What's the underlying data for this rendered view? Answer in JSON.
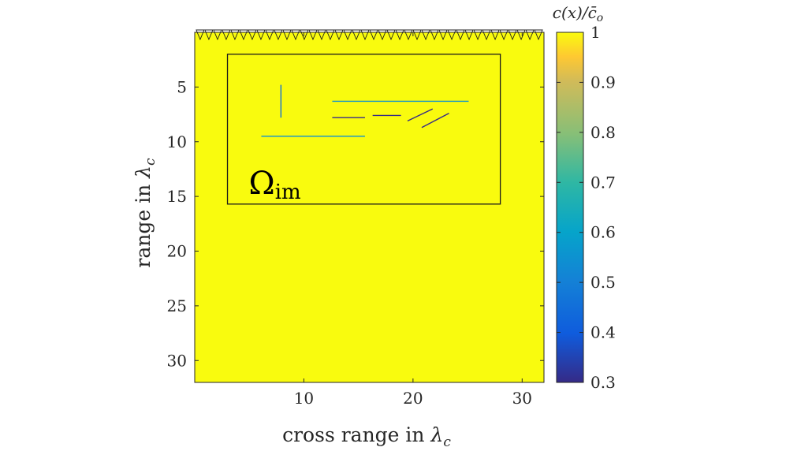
{
  "chart_data": {
    "type": "heatmap",
    "title": "",
    "xlabel": "cross range in",
    "xlabel_symbol": "λ",
    "xlabel_subscript": "c",
    "ylabel": "range in",
    "ylabel_symbol": "λ",
    "ylabel_subscript": "c",
    "xlim": [
      0,
      32
    ],
    "ylim": [
      0,
      32
    ],
    "y_reversed": true,
    "x_ticks": [
      10,
      20,
      30
    ],
    "y_ticks": [
      5,
      10,
      15,
      20,
      25,
      30
    ],
    "background_value": 1,
    "colormap": "parula",
    "colorbar": {
      "label": "c(x)/c̄o",
      "label_parts": [
        "c(x)/",
        "c̄",
        "o"
      ],
      "range": [
        0.3,
        1
      ],
      "ticks": [
        0.3,
        0.4,
        0.5,
        0.6,
        0.7,
        0.8,
        0.9,
        1
      ],
      "tick_labels": [
        "0.3",
        "0.4",
        "0.5",
        "0.6",
        "0.7",
        "0.8",
        "0.9",
        "1"
      ]
    },
    "array_sensors": {
      "x_start": 0.5,
      "x_end": 31.5,
      "count": 40,
      "y": 0
    },
    "imaging_window": {
      "label": "Ω",
      "label_subscript": "im",
      "x": [
        3,
        28
      ],
      "y": [
        2,
        15.7
      ]
    },
    "inclusions": [
      {
        "x1": 7.9,
        "y1": 4.8,
        "x2": 7.9,
        "y2": 7.8,
        "value": 0.45
      },
      {
        "x1": 12.6,
        "y1": 6.3,
        "x2": 25.1,
        "y2": 6.3,
        "value": 0.55
      },
      {
        "x1": 12.6,
        "y1": 7.8,
        "x2": 15.6,
        "y2": 7.8,
        "value": 0.3
      },
      {
        "x1": 16.3,
        "y1": 7.6,
        "x2": 18.9,
        "y2": 7.6,
        "value": 0.3
      },
      {
        "x1": 19.5,
        "y1": 8.1,
        "x2": 21.8,
        "y2": 7.0,
        "value": 0.3
      },
      {
        "x1": 20.8,
        "y1": 8.7,
        "x2": 23.3,
        "y2": 7.4,
        "value": 0.3
      },
      {
        "x1": 6.1,
        "y1": 9.5,
        "x2": 15.6,
        "y2": 9.5,
        "value": 0.55
      }
    ]
  }
}
